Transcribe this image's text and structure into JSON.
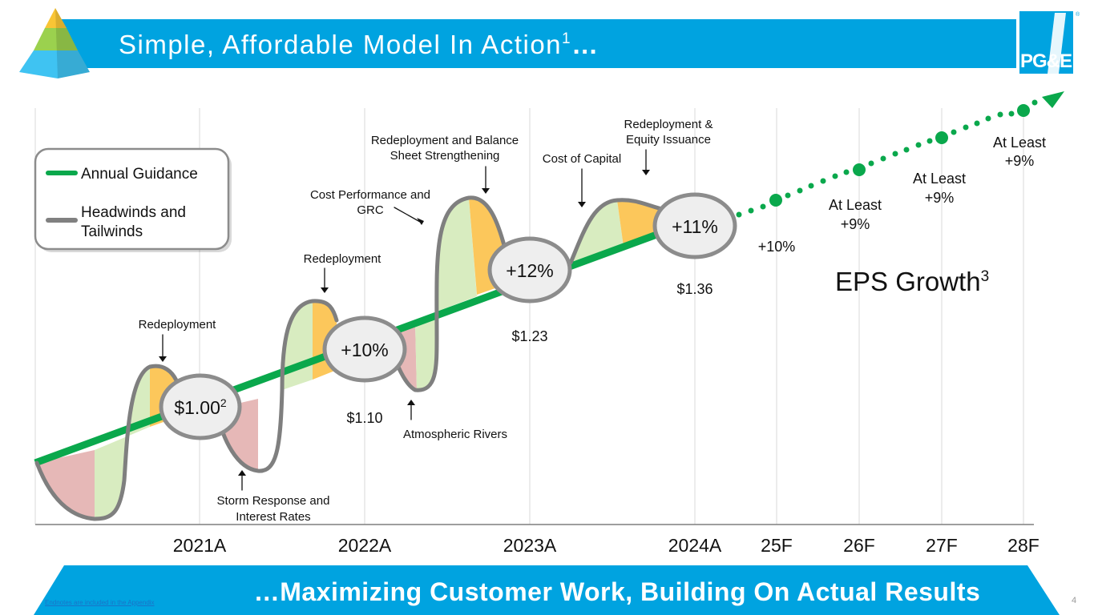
{
  "header": {
    "title": "Simple, Affordable Model In Action",
    "title_sup": "1",
    "title_suffix": "…",
    "logo_text": "PG&E",
    "logo_mark": "®"
  },
  "legend": {
    "items": [
      {
        "label_lines": [
          "Annual Guidance"
        ],
        "color": "#0aa84c"
      },
      {
        "label_lines": [
          "Headwinds and",
          "Tailwinds"
        ],
        "color": "#808080"
      }
    ]
  },
  "chart_data": {
    "type": "line",
    "title": "EPS Growth",
    "title_sup": "3",
    "categories": [
      "2021A",
      "2022A",
      "2023A",
      "2024A",
      "25F",
      "26F",
      "27F",
      "28F"
    ],
    "eps_actual": [
      {
        "year": "2021A",
        "eps": "$1.00",
        "sup": "2"
      },
      {
        "year": "2022A",
        "eps": "$1.10"
      },
      {
        "year": "2023A",
        "eps": "$1.23"
      },
      {
        "year": "2024A",
        "eps": "$1.36"
      }
    ],
    "growth_bubbles": [
      {
        "year": "2022A",
        "label": "+10%"
      },
      {
        "year": "2023A",
        "label": "+12%"
      },
      {
        "year": "2024A",
        "label": "+11%"
      }
    ],
    "forecast": [
      {
        "year": "25F",
        "label_lines": [
          "+10%"
        ]
      },
      {
        "year": "26F",
        "label_lines": [
          "At Least",
          "+9%"
        ]
      },
      {
        "year": "27F",
        "label_lines": [
          "At Least",
          "+9%"
        ]
      },
      {
        "year": "28F",
        "label_lines": [
          "At Least",
          "+9%"
        ]
      }
    ],
    "annotations": [
      {
        "lines": [
          "Redeployment"
        ],
        "kind": "tailwind"
      },
      {
        "lines": [
          "Storm Response and",
          "Interest Rates"
        ],
        "kind": "headwind"
      },
      {
        "lines": [
          "Redeployment"
        ],
        "kind": "tailwind"
      },
      {
        "lines": [
          "Cost Performance and",
          "GRC"
        ],
        "kind": "tailwind"
      },
      {
        "lines": [
          "Atmospheric Rivers"
        ],
        "kind": "headwind"
      },
      {
        "lines": [
          "Redeployment and Balance",
          "Sheet Strengthening"
        ],
        "kind": "tailwind"
      },
      {
        "lines": [
          "Cost of Capital"
        ],
        "kind": "tailwind"
      },
      {
        "lines": [
          "Redeployment &",
          "Equity Issuance"
        ],
        "kind": "tailwind"
      }
    ],
    "colors": {
      "guidance": "#0aa84c",
      "wave_outline": "#7f7f7f",
      "headwind_fill": "#e6b8b7",
      "tailwind_fill": "#d8ecc0",
      "tailwind_accent": "#fcc75b",
      "grid": "#d9d9d9"
    }
  },
  "footer": {
    "banner": "…Maximizing Customer Work, Building On Actual Results",
    "endnote_link": "Endnotes are included in the Appendix",
    "page_number": "4"
  },
  "colors": {
    "brand_blue": "#00a3e0"
  }
}
